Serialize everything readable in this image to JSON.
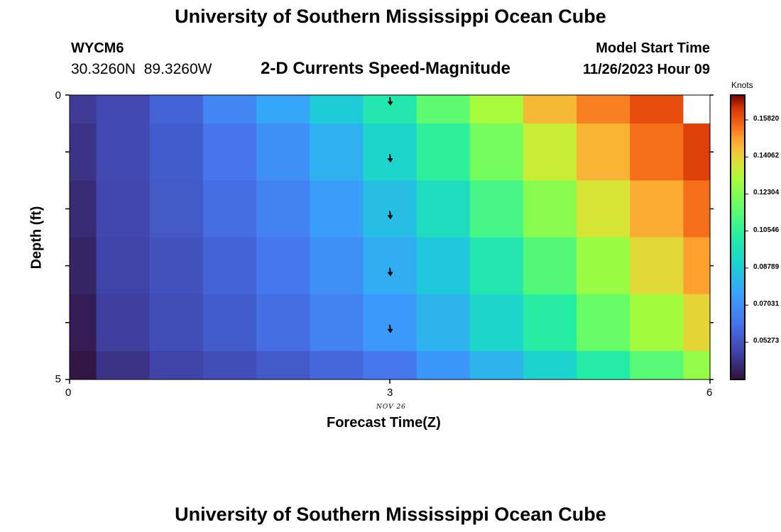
{
  "title": "University of Southern Mississippi Ocean Cube",
  "station": {
    "id": "WYCM6",
    "coords": "30.3260N  89.3260W"
  },
  "model": {
    "start_label": "Model Start Time",
    "start_time": "11/26/2023 Hour 09"
  },
  "subtitle": "2-D Currents Speed-Magnitude",
  "footer_title": "University of Southern Mississippi Ocean Cube",
  "chart_data": {
    "type": "heatmap",
    "title": "2-D Currents Speed-Magnitude",
    "xlabel": "Forecast Time(Z)",
    "ylabel": "Depth (ft)",
    "x_ticks": [
      "0",
      "3",
      "6"
    ],
    "y_ticks": [
      "0",
      "5"
    ],
    "x_date_label": "NOV 26",
    "xlim": [
      0,
      6
    ],
    "ylim": [
      0,
      5
    ],
    "colorbar": {
      "unit": "Knots",
      "ticks": [
        "0.05273",
        "0.07031",
        "0.08789",
        "0.10546",
        "0.12304",
        "0.14062",
        "0.15820"
      ],
      "range": [
        0.035,
        0.17
      ]
    },
    "columns_x": [
      0,
      0.5,
      1.0,
      1.5,
      2.0,
      2.5,
      3.0,
      3.5,
      4.0,
      4.5,
      5.0,
      5.5,
      6.0
    ],
    "rows_depth": [
      0,
      1,
      2,
      3,
      4,
      5
    ],
    "values_knots": [
      [
        0.046,
        0.05,
        0.057,
        0.067,
        0.077,
        0.088,
        0.1,
        0.115,
        0.13,
        0.145,
        0.153,
        0.16,
        null
      ],
      [
        0.044,
        0.05,
        0.055,
        0.062,
        0.07,
        0.08,
        0.092,
        0.105,
        0.12,
        0.135,
        0.146,
        0.155,
        0.162
      ],
      [
        0.042,
        0.049,
        0.054,
        0.06,
        0.066,
        0.074,
        0.084,
        0.095,
        0.11,
        0.124,
        0.137,
        0.147,
        0.155
      ],
      [
        0.04,
        0.048,
        0.052,
        0.057,
        0.063,
        0.07,
        0.079,
        0.087,
        0.1,
        0.113,
        0.127,
        0.139,
        0.149
      ],
      [
        0.038,
        0.047,
        0.051,
        0.055,
        0.06,
        0.066,
        0.073,
        0.081,
        0.092,
        0.103,
        0.117,
        0.129,
        0.14
      ],
      [
        0.036,
        0.044,
        0.048,
        0.051,
        0.054,
        0.058,
        0.063,
        0.072,
        0.081,
        0.091,
        0.102,
        0.114,
        0.126
      ]
    ],
    "arrows": [
      {
        "x": 3,
        "depth": 0,
        "direction": "south"
      },
      {
        "x": 3,
        "depth": 1,
        "direction": "south"
      },
      {
        "x": 3,
        "depth": 2,
        "direction": "south"
      },
      {
        "x": 3,
        "depth": 3,
        "direction": "south"
      },
      {
        "x": 3,
        "depth": 4,
        "direction": "south"
      }
    ]
  }
}
